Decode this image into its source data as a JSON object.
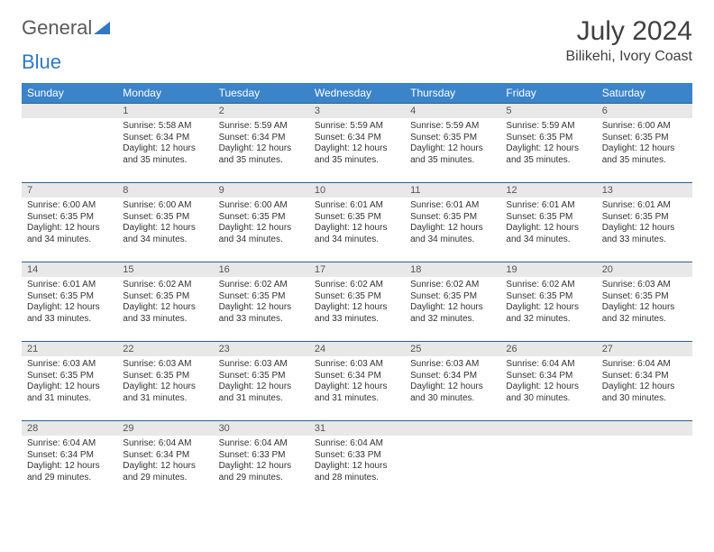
{
  "logo": {
    "text1": "General",
    "text2": "Blue"
  },
  "title": "July 2024",
  "location": "Bilikehi, Ivory Coast",
  "colors": {
    "header_bg": "#3b84c9",
    "header_fg": "#ffffff",
    "daynum_bg": "#e8e8e8",
    "rule": "#2f5f8f",
    "text": "#333333"
  },
  "typography": {
    "title_fontsize": 30,
    "location_fontsize": 16,
    "dayheader_fontsize": 12,
    "daynum_fontsize": 11,
    "body_fontsize": 10
  },
  "day_headers": [
    "Sunday",
    "Monday",
    "Tuesday",
    "Wednesday",
    "Thursday",
    "Friday",
    "Saturday"
  ],
  "weeks": [
    [
      {
        "n": "",
        "sunrise": "",
        "sunset": "",
        "daylight": ""
      },
      {
        "n": "1",
        "sunrise": "5:58 AM",
        "sunset": "6:34 PM",
        "daylight": "12 hours and 35 minutes."
      },
      {
        "n": "2",
        "sunrise": "5:59 AM",
        "sunset": "6:34 PM",
        "daylight": "12 hours and 35 minutes."
      },
      {
        "n": "3",
        "sunrise": "5:59 AM",
        "sunset": "6:34 PM",
        "daylight": "12 hours and 35 minutes."
      },
      {
        "n": "4",
        "sunrise": "5:59 AM",
        "sunset": "6:35 PM",
        "daylight": "12 hours and 35 minutes."
      },
      {
        "n": "5",
        "sunrise": "5:59 AM",
        "sunset": "6:35 PM",
        "daylight": "12 hours and 35 minutes."
      },
      {
        "n": "6",
        "sunrise": "6:00 AM",
        "sunset": "6:35 PM",
        "daylight": "12 hours and 35 minutes."
      }
    ],
    [
      {
        "n": "7",
        "sunrise": "6:00 AM",
        "sunset": "6:35 PM",
        "daylight": "12 hours and 34 minutes."
      },
      {
        "n": "8",
        "sunrise": "6:00 AM",
        "sunset": "6:35 PM",
        "daylight": "12 hours and 34 minutes."
      },
      {
        "n": "9",
        "sunrise": "6:00 AM",
        "sunset": "6:35 PM",
        "daylight": "12 hours and 34 minutes."
      },
      {
        "n": "10",
        "sunrise": "6:01 AM",
        "sunset": "6:35 PM",
        "daylight": "12 hours and 34 minutes."
      },
      {
        "n": "11",
        "sunrise": "6:01 AM",
        "sunset": "6:35 PM",
        "daylight": "12 hours and 34 minutes."
      },
      {
        "n": "12",
        "sunrise": "6:01 AM",
        "sunset": "6:35 PM",
        "daylight": "12 hours and 34 minutes."
      },
      {
        "n": "13",
        "sunrise": "6:01 AM",
        "sunset": "6:35 PM",
        "daylight": "12 hours and 33 minutes."
      }
    ],
    [
      {
        "n": "14",
        "sunrise": "6:01 AM",
        "sunset": "6:35 PM",
        "daylight": "12 hours and 33 minutes."
      },
      {
        "n": "15",
        "sunrise": "6:02 AM",
        "sunset": "6:35 PM",
        "daylight": "12 hours and 33 minutes."
      },
      {
        "n": "16",
        "sunrise": "6:02 AM",
        "sunset": "6:35 PM",
        "daylight": "12 hours and 33 minutes."
      },
      {
        "n": "17",
        "sunrise": "6:02 AM",
        "sunset": "6:35 PM",
        "daylight": "12 hours and 33 minutes."
      },
      {
        "n": "18",
        "sunrise": "6:02 AM",
        "sunset": "6:35 PM",
        "daylight": "12 hours and 32 minutes."
      },
      {
        "n": "19",
        "sunrise": "6:02 AM",
        "sunset": "6:35 PM",
        "daylight": "12 hours and 32 minutes."
      },
      {
        "n": "20",
        "sunrise": "6:03 AM",
        "sunset": "6:35 PM",
        "daylight": "12 hours and 32 minutes."
      }
    ],
    [
      {
        "n": "21",
        "sunrise": "6:03 AM",
        "sunset": "6:35 PM",
        "daylight": "12 hours and 31 minutes."
      },
      {
        "n": "22",
        "sunrise": "6:03 AM",
        "sunset": "6:35 PM",
        "daylight": "12 hours and 31 minutes."
      },
      {
        "n": "23",
        "sunrise": "6:03 AM",
        "sunset": "6:35 PM",
        "daylight": "12 hours and 31 minutes."
      },
      {
        "n": "24",
        "sunrise": "6:03 AM",
        "sunset": "6:34 PM",
        "daylight": "12 hours and 31 minutes."
      },
      {
        "n": "25",
        "sunrise": "6:03 AM",
        "sunset": "6:34 PM",
        "daylight": "12 hours and 30 minutes."
      },
      {
        "n": "26",
        "sunrise": "6:04 AM",
        "sunset": "6:34 PM",
        "daylight": "12 hours and 30 minutes."
      },
      {
        "n": "27",
        "sunrise": "6:04 AM",
        "sunset": "6:34 PM",
        "daylight": "12 hours and 30 minutes."
      }
    ],
    [
      {
        "n": "28",
        "sunrise": "6:04 AM",
        "sunset": "6:34 PM",
        "daylight": "12 hours and 29 minutes."
      },
      {
        "n": "29",
        "sunrise": "6:04 AM",
        "sunset": "6:34 PM",
        "daylight": "12 hours and 29 minutes."
      },
      {
        "n": "30",
        "sunrise": "6:04 AM",
        "sunset": "6:33 PM",
        "daylight": "12 hours and 29 minutes."
      },
      {
        "n": "31",
        "sunrise": "6:04 AM",
        "sunset": "6:33 PM",
        "daylight": "12 hours and 28 minutes."
      },
      {
        "n": "",
        "sunrise": "",
        "sunset": "",
        "daylight": ""
      },
      {
        "n": "",
        "sunrise": "",
        "sunset": "",
        "daylight": ""
      },
      {
        "n": "",
        "sunrise": "",
        "sunset": "",
        "daylight": ""
      }
    ]
  ],
  "labels": {
    "sunrise": "Sunrise: ",
    "sunset": "Sunset: ",
    "daylight": "Daylight: "
  }
}
